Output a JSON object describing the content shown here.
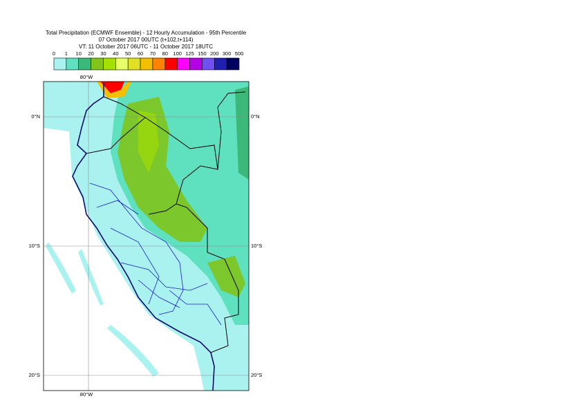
{
  "header": {
    "title": "Total Precipitation (ECMWF Ensemble) - 12 Hourly Accumulation - 95th Percentile",
    "run": "07 October 2017 00UTC (t+102,t+114)",
    "valid": "VT: 11 October 2017 06UTC - 11 October 2017 18UTC"
  },
  "legend": {
    "labels": [
      "0",
      "1",
      "10",
      "20",
      "30",
      "40",
      "50",
      "60",
      "70",
      "80",
      "100",
      "125",
      "150",
      "200",
      "300",
      "500"
    ],
    "colors": [
      "#ffffff",
      "#aaf2f0",
      "#5fe0bf",
      "#3cb878",
      "#80c41c",
      "#a6e000",
      "#e8ff6a",
      "#e0e024",
      "#f2c000",
      "#ff8200",
      "#ff0000",
      "#ff00ff",
      "#b400e4",
      "#7050f0",
      "#2020b0",
      "#000060"
    ]
  },
  "map": {
    "lon_labels": [
      "80°W"
    ],
    "lat_labels": [
      "0°N",
      "10°S",
      "20°S"
    ]
  }
}
